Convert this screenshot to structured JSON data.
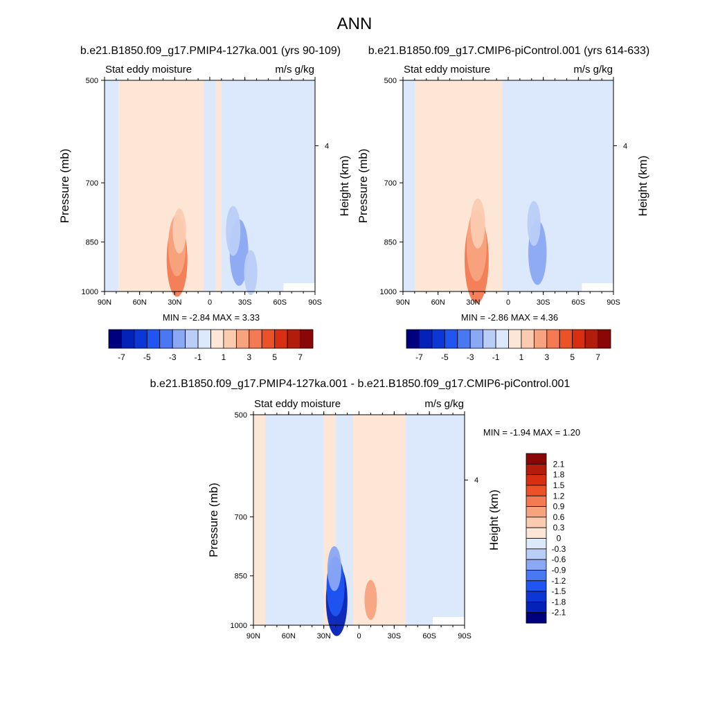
{
  "page": {
    "title": "ANN",
    "title_left": "b.e21.B1850.f09_g17.PMIP4-127ka.001 (yrs 90-109)",
    "title_right": "b.e21.B1850.f09_g17.CMIP6-piControl.001 (yrs 614-633)",
    "title_diff": "b.e21.B1850.f09_g17.PMIP4-127ka.001 - b.e21.B1850.f09_g17.CMIP6-piControl.001"
  },
  "colors": {
    "case_scale": [
      "#00007f",
      "#0421b8",
      "#0c37d6",
      "#2155f2",
      "#4a78f2",
      "#8aa8f3",
      "#b9cdf6",
      "#dce8fb",
      "#fde6d6",
      "#fbcbb0",
      "#f7a37f",
      "#f37a52",
      "#ec5228",
      "#d82f12",
      "#b31b0b",
      "#8a0707"
    ],
    "diff_scale": [
      "#00007f",
      "#0421b8",
      "#0c37d6",
      "#2155f2",
      "#4a78f2",
      "#8aa8f3",
      "#b9cdf6",
      "#dce8fb",
      "#fde6d6",
      "#fbcbb0",
      "#f7a37f",
      "#f37a52",
      "#ec5228",
      "#d82f12",
      "#b31b0b",
      "#8a0707"
    ]
  },
  "chart_data": [
    {
      "type": "heatmap",
      "name": "panel-pmip4",
      "subtitle_left": "Stat eddy moisture",
      "subtitle_right": "m/s g/kg",
      "ylabel": "Pressure (mb)",
      "ylabel_right": "Height (km)",
      "x_ticks": [
        "90N",
        "60N",
        "30N",
        "0",
        "30S",
        "60S",
        "90S"
      ],
      "x_values": [
        90,
        60,
        30,
        0,
        -30,
        -60,
        -90
      ],
      "y_ticks": [
        "500",
        "700",
        "850",
        "1000"
      ],
      "y_values": [
        500,
        700,
        850,
        1000
      ],
      "y_right_ticks": [
        "4"
      ],
      "y_right_values": [
        4
      ],
      "min_label": "MIN =",
      "min_value": "-2.84",
      "max_label": "MAX =",
      "max_value": "3.33",
      "colorbar_labels": [
        "-7",
        "-5",
        "-3",
        "-1",
        "1",
        "3",
        "5",
        "7"
      ],
      "background_bands": [
        {
          "lat_from": 90,
          "lat_to": 78,
          "value": -0.5
        },
        {
          "lat_from": 78,
          "lat_to": 5,
          "value": 0.5
        },
        {
          "lat_from": 5,
          "lat_to": -5,
          "value": -0.5
        },
        {
          "lat_from": -5,
          "lat_to": -10,
          "value": 0.5
        },
        {
          "lat_from": -10,
          "lat_to": -90,
          "value": -0.5
        }
      ],
      "features": [
        {
          "lat": 28,
          "p": 900,
          "value": 3.0
        },
        {
          "lat": 28,
          "p": 860,
          "value": 2.2
        },
        {
          "lat": 26,
          "p": 820,
          "value": 1.2
        },
        {
          "lat": -25,
          "p": 880,
          "value": -2.5
        },
        {
          "lat": -20,
          "p": 820,
          "value": -1.5
        },
        {
          "lat": -35,
          "p": 940,
          "value": -1.2
        }
      ]
    },
    {
      "type": "heatmap",
      "name": "panel-picontrol",
      "subtitle_left": "Stat eddy moisture",
      "subtitle_right": "m/s g/kg",
      "ylabel": "Pressure (mb)",
      "ylabel_right": "Height (km)",
      "x_ticks": [
        "90N",
        "60N",
        "30N",
        "0",
        "30S",
        "60S",
        "90S"
      ],
      "x_values": [
        90,
        60,
        30,
        0,
        -30,
        -60,
        -90
      ],
      "y_ticks": [
        "500",
        "700",
        "850",
        "1000"
      ],
      "y_values": [
        500,
        700,
        850,
        1000
      ],
      "y_right_ticks": [
        "4"
      ],
      "y_right_values": [
        4
      ],
      "min_label": "MIN =",
      "min_value": "-2.86",
      "max_label": "MAX =",
      "max_value": "4.36",
      "colorbar_labels": [
        "-7",
        "-5",
        "-3",
        "-1",
        "1",
        "3",
        "5",
        "7"
      ],
      "background_bands": [
        {
          "lat_from": 90,
          "lat_to": 80,
          "value": -0.5
        },
        {
          "lat_from": 80,
          "lat_to": 5,
          "value": 0.5
        },
        {
          "lat_from": 5,
          "lat_to": -90,
          "value": -0.5
        }
      ],
      "features": [
        {
          "lat": 27,
          "p": 900,
          "value": 3.8
        },
        {
          "lat": 27,
          "p": 860,
          "value": 2.8
        },
        {
          "lat": 26,
          "p": 800,
          "value": 1.5
        },
        {
          "lat": -25,
          "p": 880,
          "value": -2.4
        },
        {
          "lat": -22,
          "p": 800,
          "value": -1.2
        }
      ]
    },
    {
      "type": "heatmap",
      "name": "panel-difference",
      "subtitle_left": "Stat eddy moisture",
      "subtitle_right": "m/s g/kg",
      "ylabel": "Pressure (mb)",
      "ylabel_right": "Height (km)",
      "x_ticks": [
        "90N",
        "60N",
        "30N",
        "0",
        "30S",
        "60S",
        "90S"
      ],
      "x_values": [
        90,
        60,
        30,
        0,
        -30,
        -60,
        -90
      ],
      "y_ticks": [
        "500",
        "700",
        "850",
        "1000"
      ],
      "y_values": [
        500,
        700,
        850,
        1000
      ],
      "y_right_ticks": [
        "4"
      ],
      "y_right_values": [
        4
      ],
      "min_label": "MIN =",
      "min_value": "-1.94",
      "max_label": "MAX =",
      "max_value": "1.20",
      "colorbar_labels": [
        "2.1",
        "1.8",
        "1.5",
        "1.2",
        "0.9",
        "0.6",
        "0.3",
        "0",
        "-0.3",
        "-0.6",
        "-0.9",
        "-1.2",
        "-1.5",
        "-1.8",
        "-2.1"
      ],
      "background_bands": [
        {
          "lat_from": 90,
          "lat_to": 80,
          "value": 0.15
        },
        {
          "lat_from": 80,
          "lat_to": 30,
          "value": -0.15
        },
        {
          "lat_from": 30,
          "lat_to": 20,
          "value": 0.15
        },
        {
          "lat_from": 20,
          "lat_to": 5,
          "value": -0.15
        },
        {
          "lat_from": 5,
          "lat_to": -40,
          "value": 0.15
        },
        {
          "lat_from": -40,
          "lat_to": -90,
          "value": -0.15
        }
      ],
      "features": [
        {
          "lat": 19,
          "p": 920,
          "value": -1.9
        },
        {
          "lat": 20,
          "p": 880,
          "value": -1.4
        },
        {
          "lat": 21,
          "p": 830,
          "value": -0.8
        },
        {
          "lat": -10,
          "p": 920,
          "value": 0.6
        }
      ]
    }
  ]
}
